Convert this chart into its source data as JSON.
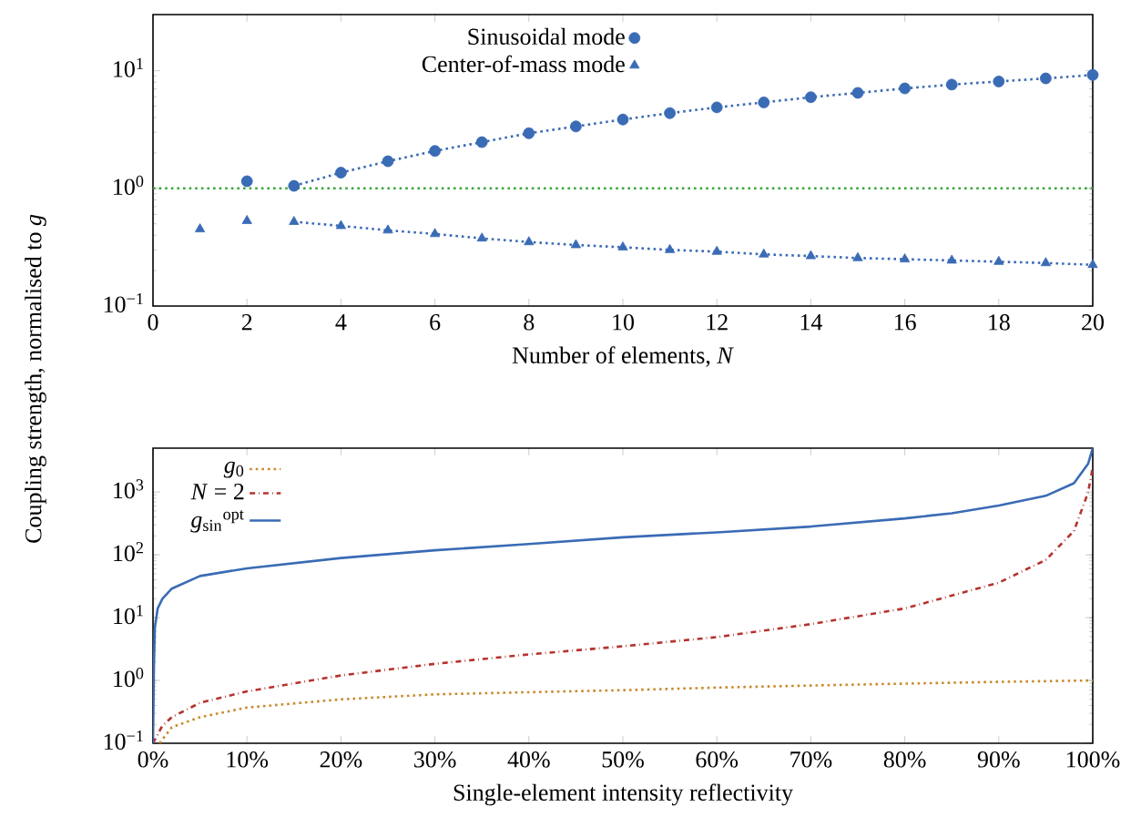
{
  "chart_data": [
    {
      "type": "scatter",
      "xlabel": "Number of elements, *N*",
      "ylabel": "Coupling strength, normalised to *g*",
      "log": "y",
      "legend": "top",
      "xlim": [
        0,
        20
      ],
      "ylim": [
        0.1,
        30
      ],
      "xticks": [
        0,
        2,
        4,
        6,
        8,
        10,
        12,
        14,
        16,
        18,
        20
      ],
      "yticks": [
        {
          "value": 0.1,
          "label": "10$^{−1}$"
        },
        {
          "value": 1,
          "label": "10$^{0}$"
        },
        {
          "value": 10,
          "label": "10$^{1}$"
        }
      ],
      "series": [
        {
          "name": "Sinusoidal mode",
          "color": "#3a6bb5",
          "marker": "circle",
          "x": [
            2,
            3,
            4,
            5,
            6,
            7,
            8,
            9,
            10,
            11,
            12,
            13,
            14,
            15,
            16,
            17,
            18,
            19,
            20
          ],
          "values": [
            1.15,
            1.05,
            1.36,
            1.7,
            2.08,
            2.47,
            2.94,
            3.36,
            3.85,
            4.36,
            4.88,
            5.38,
            5.95,
            6.48,
            7.07,
            7.62,
            8.1,
            8.6,
            9.2
          ]
        },
        {
          "name": "Center-of-mass mode",
          "color": "#3a6bb5",
          "marker": "triangle",
          "x": [
            1,
            2,
            3,
            4,
            5,
            6,
            7,
            8,
            9,
            10,
            11,
            12,
            13,
            14,
            15,
            16,
            17,
            18,
            19,
            20
          ],
          "values": [
            0.45,
            0.53,
            0.52,
            0.48,
            0.44,
            0.41,
            0.376,
            0.35,
            0.33,
            0.316,
            0.3,
            0.29,
            0.275,
            0.266,
            0.256,
            0.25,
            0.244,
            0.238,
            0.232,
            0.224
          ]
        },
        {
          "type": "line",
          "color": "#3a6bb5",
          "line_style": "dotted",
          "marker": "none",
          "x": [
            3,
            4,
            5,
            6,
            7,
            8,
            9,
            10,
            11,
            12,
            13,
            14,
            15,
            16,
            17,
            18,
            19,
            20
          ],
          "values": [
            1.05,
            1.36,
            1.7,
            2.08,
            2.47,
            2.94,
            3.36,
            3.85,
            4.36,
            4.88,
            5.38,
            5.95,
            6.48,
            7.07,
            7.62,
            8.1,
            8.6,
            9.2
          ]
        },
        {
          "type": "line",
          "color": "#3a6bb5",
          "line_style": "dotted",
          "marker": "none",
          "x": [
            3,
            4,
            5,
            6,
            7,
            8,
            9,
            10,
            11,
            12,
            13,
            14,
            15,
            16,
            17,
            18,
            19,
            20
          ],
          "values": [
            0.52,
            0.48,
            0.44,
            0.41,
            0.376,
            0.35,
            0.33,
            0.316,
            0.3,
            0.29,
            0.275,
            0.266,
            0.256,
            0.25,
            0.244,
            0.238,
            0.232,
            0.224
          ]
        }
      ],
      "ref_lines": [
        {
          "axis": "y",
          "value": 1,
          "color": "#3aa63a",
          "line_style": "dotted"
        }
      ]
    },
    {
      "type": "line",
      "xlabel": "Single-element intensity reflectivity",
      "log": "y",
      "legend": "top left",
      "marker": "none",
      "xlim": [
        0,
        100
      ],
      "ylim": [
        0.1,
        5000
      ],
      "xticks": [
        {
          "value": 0,
          "label": "0%"
        },
        {
          "value": 10,
          "label": "10%"
        },
        {
          "value": 20,
          "label": "20%"
        },
        {
          "value": 30,
          "label": "30%"
        },
        {
          "value": 40,
          "label": "40%"
        },
        {
          "value": 50,
          "label": "50%"
        },
        {
          "value": 60,
          "label": "60%"
        },
        {
          "value": 70,
          "label": "70%"
        },
        {
          "value": 80,
          "label": "80%"
        },
        {
          "value": 90,
          "label": "90%"
        },
        {
          "value": 100,
          "label": "100%"
        }
      ],
      "yticks": [
        {
          "value": 0.1,
          "label": "10$^{−1}$"
        },
        {
          "value": 1,
          "label": "10$^{0}$"
        },
        {
          "value": 10,
          "label": "10$^{1}$"
        },
        {
          "value": 100,
          "label": "10$^{2}$"
        },
        {
          "value": 1000,
          "label": "10$^{3}$"
        }
      ],
      "series": [
        {
          "name": "*g*$_{0}$",
          "color": "#c98a2e",
          "line_style": "dotted",
          "x": [
            0.7,
            2,
            5,
            10,
            20,
            30,
            40,
            50,
            60,
            70,
            80,
            90,
            100
          ],
          "values": [
            0.1,
            0.18,
            0.26,
            0.37,
            0.5,
            0.6,
            0.65,
            0.7,
            0.77,
            0.83,
            0.89,
            0.95,
            1.0
          ]
        },
        {
          "name": "*N* = 2",
          "color": "#b5332e",
          "line_style": "dashdot",
          "x": [
            0,
            1,
            2,
            5,
            10,
            20,
            30,
            40,
            50,
            60,
            70,
            80,
            90,
            95,
            98,
            99.5,
            100
          ],
          "values": [
            0.1,
            0.19,
            0.26,
            0.44,
            0.67,
            1.2,
            1.84,
            2.6,
            3.5,
            4.9,
            7.9,
            14,
            36,
            83,
            240,
            980,
            2500
          ]
        },
        {
          "name": "*g*$_{sin}$$^{opt}$",
          "color": "#3a6bb5",
          "line_style": "solid",
          "x": [
            0,
            0.1,
            0.2,
            0.5,
            1,
            2,
            5,
            10,
            20,
            30,
            40,
            50,
            60,
            70,
            80,
            85,
            90,
            95,
            98,
            99.5,
            100
          ],
          "values": [
            0.1,
            1.7,
            7,
            14,
            20,
            29,
            46,
            61,
            89,
            118,
            149,
            190,
            228,
            282,
            380,
            460,
            610,
            870,
            1380,
            2800,
            5000
          ]
        }
      ]
    }
  ]
}
